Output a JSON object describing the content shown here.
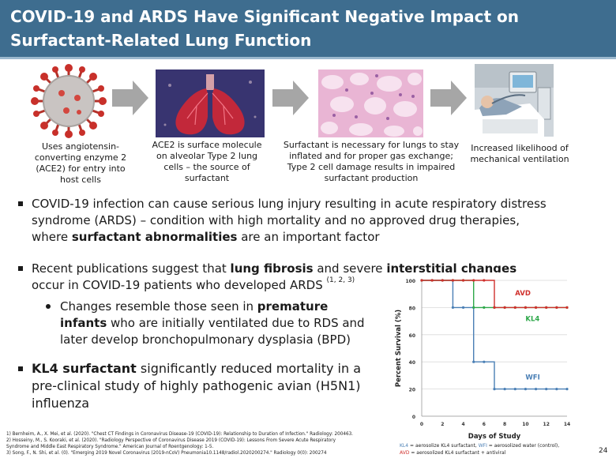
{
  "slide": {
    "title": "COVID-19 and ARDS Have Significant Negative Impact on Surfactant-Related Lung Function",
    "page_number": "24"
  },
  "flow": [
    {
      "caption": "Uses angiotensin-converting enzyme 2 (ACE2) for entry into host cells",
      "icon": "virus-icon"
    },
    {
      "caption": "ACE2 is surface molecule on alveolar Type 2 lung cells – the source of surfactant",
      "icon": "lungs-icon"
    },
    {
      "caption": "Surfactant is necessary for lungs to stay inflated and for proper gas exchange; Type 2 cell damage results in impaired surfactant production",
      "icon": "histology-icon"
    },
    {
      "caption": "Increased likelihood of mechanical ventilation",
      "icon": "ventilator-icon"
    }
  ],
  "bullets": {
    "b1_l1": "COVID-19 infection can cause serious lung injury resulting in acute respiratory distress",
    "b1_l2": "syndrome (ARDS) – condition with high mortality and no approved drug therapies,",
    "b1_l3a": "where ",
    "b1_l3b": "surfactant abnormalities",
    "b1_l3c": " are an important factor",
    "b2_l1a": "Recent publications suggest that ",
    "b2_l1b": "lung fibrosis",
    "b2_l1c": " and severe ",
    "b2_l1d": "interstitial changes",
    "b2_l2a": "occur in COVID-19 patients who developed ARDS ",
    "b2_l2sup": "(1, 2, 3)",
    "sub_l1a": "Changes resemble those seen in ",
    "sub_l1b": "premature",
    "sub_l2a": "infants",
    "sub_l2b": " who are initially ventilated due to RDS and",
    "sub_l3": "later develop bronchopulmonary dysplasia (BPD)",
    "b3_l1a": "KL4 surfactant",
    "b3_l1b": " significantly reduced mortality in a",
    "b3_l2": "pre-clinical study of highly pathogenic avian (H5N1)",
    "b3_l3": "influenza"
  },
  "references": [
    "1) Bernheim, A., X. Mei, et al. (2020). \"Chest CT Findings in Coronavirus Disease-19 (COVID-19): Relationship to Duration of Infection.\" Radiology: 200463.",
    "2) Hosseiny, M., S. Kooraki, et al. (2020). \"Radiology Perspective of Coronavirus Disease 2019 (COVID-19): Lessons From Severe Acute Respiratory",
    "Syndrome and Middle East Respiratory Syndrome.\" American Journal of Roentgenology: 1-5.",
    "3) Song, F., N. Shi, et al. (0). \"Emerging 2019 Novel Coronavirus (2019-nCoV) Pneumonia10.1148/radiol.2020200274.\" Radiology 0(0): 200274"
  ],
  "legend": {
    "kl4": "KL4",
    "kl4_text": " = aerosolize KL4 surfactant, ",
    "wfi": "WFI",
    "wfi_text": " = aerosolized water (control),",
    "avd": "AVD",
    "avd_text": " = aerosolized KL4 surfactant + antiviral"
  },
  "colors": {
    "header_bg": "#3e6d8f",
    "wfi": "#4a7fb5",
    "kl4": "#2ea84a",
    "avd": "#d0312d"
  },
  "chart_data": {
    "type": "line",
    "title": "",
    "xlabel": "Days of Study",
    "ylabel": "Percent Survival (%)",
    "xlim": [
      0,
      14
    ],
    "ylim": [
      0,
      100
    ],
    "x_ticks": [
      "0",
      "2",
      "4",
      "6",
      "8",
      "10",
      "12",
      "14"
    ],
    "y_ticks": [
      "0",
      "20",
      "40",
      "60",
      "80",
      "100"
    ],
    "step": true,
    "series": [
      {
        "name": "AVD",
        "color": "#d0312d",
        "x": [
          0,
          1,
          2,
          3,
          4,
          5,
          6,
          7,
          8,
          9,
          10,
          11,
          12,
          13,
          14
        ],
        "y": [
          100,
          100,
          100,
          100,
          100,
          100,
          100,
          80,
          80,
          80,
          80,
          80,
          80,
          80,
          80
        ]
      },
      {
        "name": "KL4",
        "color": "#2ea84a",
        "x": [
          0,
          1,
          2,
          3,
          4,
          5,
          6,
          7,
          8,
          9,
          10,
          11,
          12,
          13,
          14
        ],
        "y": [
          100,
          100,
          100,
          100,
          100,
          80,
          80,
          80,
          80,
          80,
          80,
          80,
          80,
          80,
          80
        ]
      },
      {
        "name": "WFI",
        "color": "#4a7fb5",
        "x": [
          0,
          1,
          2,
          3,
          4,
          5,
          6,
          7,
          8,
          9,
          10,
          11,
          12,
          13,
          14
        ],
        "y": [
          100,
          100,
          100,
          80,
          80,
          40,
          40,
          20,
          20,
          20,
          20,
          20,
          20,
          20,
          20
        ]
      }
    ]
  }
}
